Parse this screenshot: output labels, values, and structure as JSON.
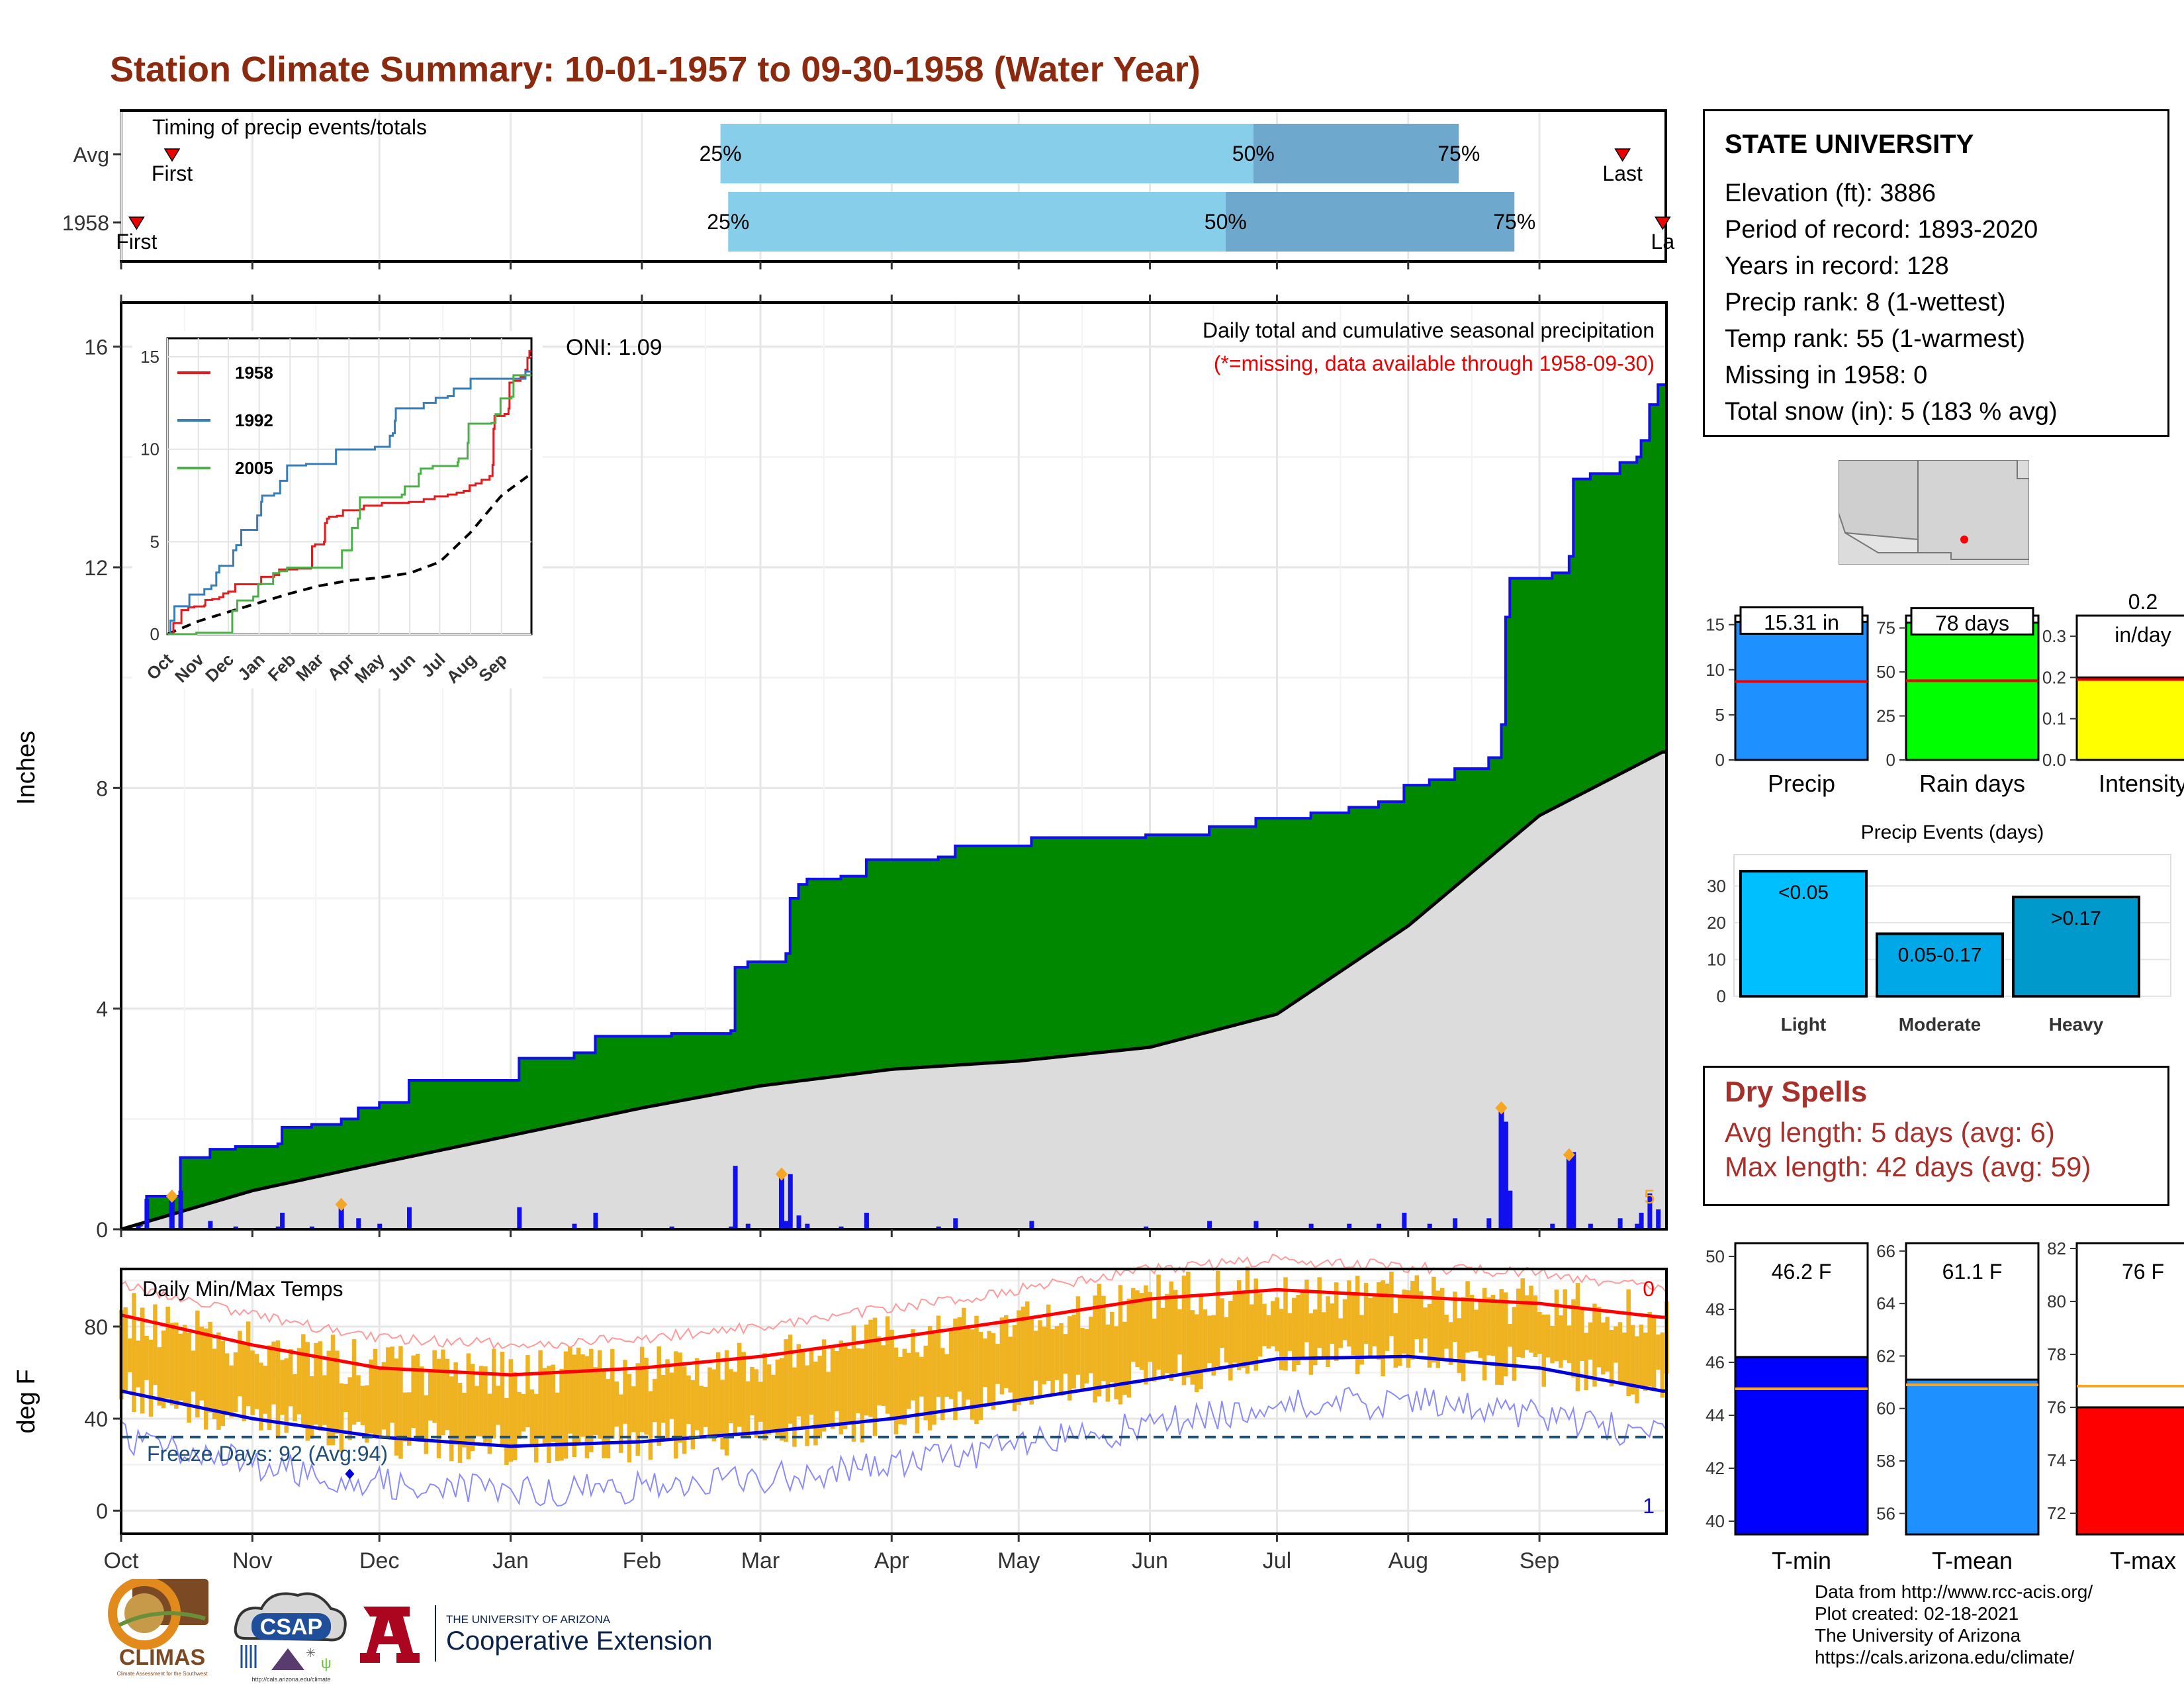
{
  "title": "Station Climate Summary: 10-01-1957 to 09-30-1958 (Water Year)",
  "timing": {
    "label": "Timing of precip events/totals",
    "rows": [
      {
        "name": "Avg",
        "first_label": "First",
        "last_label": "Last",
        "first": 0.033,
        "last": 0.972,
        "p25": 0.388,
        "p50": 0.733,
        "p75": 0.866,
        "p25_label": "25%",
        "p50_label": "50%",
        "p75_label": "75%"
      },
      {
        "name": "1958",
        "first_label": "First",
        "last_label": "La",
        "first": 0.01,
        "last": 0.998,
        "p25": 0.393,
        "p50": 0.715,
        "p75": 0.902,
        "p25_label": "25%",
        "p50_label": "50%",
        "p75_label": "75%"
      }
    ]
  },
  "main": {
    "caption": "Daily total and cumulative seasonal precipitation",
    "missing_note": "(*=missing, data available through 1958-09-30)",
    "oni": "ONI: 1.09",
    "ylabel": "Inches",
    "yticks": [
      "0",
      "4",
      "8",
      "12",
      "16"
    ],
    "snow_tag": "5"
  },
  "inset": {
    "yticks": [
      "0",
      "5",
      "10",
      "15"
    ],
    "months": [
      "Oct",
      "Nov",
      "Dec",
      "Jan",
      "Feb",
      "Mar",
      "Apr",
      "May",
      "Jun",
      "Jul",
      "Aug",
      "Sep"
    ],
    "legend": [
      {
        "name": "1958",
        "color": "#e41a1c"
      },
      {
        "name": "1992",
        "color": "#377eb8"
      },
      {
        "name": "2005",
        "color": "#4daf4a"
      }
    ]
  },
  "temps": {
    "label": "Daily Min/Max Temps",
    "ylabel": "deg F",
    "yticks": [
      "0",
      "40",
      "80"
    ],
    "freeze": "Freeze Days: 92 (Avg:94)",
    "record_high_count": "0",
    "record_low_count": "1"
  },
  "months": [
    "Oct",
    "Nov",
    "Dec",
    "Jan",
    "Feb",
    "Mar",
    "Apr",
    "May",
    "Jun",
    "Jul",
    "Aug",
    "Sep"
  ],
  "info": {
    "station": "STATE UNIVERSITY",
    "lines": [
      "Elevation (ft): 3886",
      "Period of record: 1893-2020",
      "Years in record: 128",
      "Precip rank: 8 (1-wettest)",
      "Temp rank: 55 (1-warmest)",
      "Missing in 1958: 0",
      "Total snow (in): 5 (183 % avg)"
    ]
  },
  "summary_bars": [
    {
      "name": "Precip",
      "value": 15.31,
      "avg": 8.7,
      "label": "15.31 in",
      "label2": "",
      "color": "#1e90ff",
      "max": 16,
      "ticks": [
        "0",
        "5",
        "10",
        "15"
      ]
    },
    {
      "name": "Rain days",
      "value": 78,
      "avg": 45,
      "label": "78 days",
      "label2": "",
      "color": "#00ff00",
      "max": 82,
      "ticks": [
        "0",
        "25",
        "50",
        "75"
      ]
    },
    {
      "name": "Intensity",
      "value": 0.2,
      "avg": 0.195,
      "label": "0.2",
      "label2": "in/day",
      "color": "#ffff00",
      "max": 0.35,
      "ticks": [
        "0.0",
        "0.1",
        "0.2",
        "0.3"
      ]
    }
  ],
  "events": {
    "title": "Precip Events (days)",
    "yticks": [
      "0",
      "10",
      "20",
      "30"
    ],
    "bars": [
      {
        "name": "Light",
        "value": 34,
        "label": "<0.05",
        "color": "#00bfff"
      },
      {
        "name": "Moderate",
        "value": 17,
        "label": "0.05-0.17",
        "color": "#00a8e8"
      },
      {
        "name": "Heavy",
        "value": 27,
        "label": ">0.17",
        "color": "#0099cc"
      }
    ]
  },
  "dry_spells": {
    "title": "Dry Spells",
    "avg": "Avg length: 5 days (avg: 6)",
    "max": "Max length: 42 days (avg: 59)"
  },
  "temp_bars": [
    {
      "name": "T-min",
      "value": 46.2,
      "avg": 45.0,
      "label": "46.2 F",
      "color": "#0000ff",
      "min": 39.5,
      "max": 50.5,
      "ticks": [
        "40",
        "42",
        "44",
        "46",
        "48",
        "50"
      ]
    },
    {
      "name": "T-mean",
      "value": 61.1,
      "avg": 60.9,
      "label": "61.1 F",
      "color": "#1e90ff",
      "min": 55.2,
      "max": 66.3,
      "ticks": [
        "56",
        "58",
        "60",
        "62",
        "64",
        "66"
      ]
    },
    {
      "name": "T-max",
      "value": 76,
      "avg": 76.8,
      "label": "76 F",
      "color": "#ff0000",
      "min": 71.2,
      "max": 82.2,
      "ticks": [
        "72",
        "74",
        "76",
        "78",
        "80",
        "82"
      ]
    }
  ],
  "credits": [
    "Data from http://www.rcc-acis.org/",
    "Plot created: 02-18-2021",
    "The University of Arizona",
    "https://cals.arizona.edu/climate/"
  ],
  "logos": {
    "climas": "CLIMAS",
    "csap": "CSAP",
    "csap_url": "http://cals.arizona.edu/climate",
    "ua_small": "THE UNIVERSITY OF ARIZONA",
    "ua_big": "Cooperative Extension"
  },
  "chart_data": [
    {
      "type": "area",
      "title": "Daily total and cumulative seasonal precipitation",
      "ylabel": "Inches",
      "ylim": [
        0,
        16.8
      ],
      "x_range": [
        "1957-10-01",
        "1958-09-30"
      ],
      "series": [
        {
          "name": "1958",
          "points": [
            [
              "1957-10-01",
              0
            ],
            [
              "1957-10-05",
              0.05
            ],
            [
              "1957-10-07",
              0.6
            ],
            [
              "1957-10-15",
              1.3
            ],
            [
              "1957-10-22",
              1.45
            ],
            [
              "1957-10-28",
              1.5
            ],
            [
              "1957-11-07",
              1.55
            ],
            [
              "1957-11-08",
              1.85
            ],
            [
              "1957-11-15",
              1.9
            ],
            [
              "1957-11-22",
              2.0
            ],
            [
              "1957-11-26",
              2.2
            ],
            [
              "1957-12-01",
              2.3
            ],
            [
              "1957-12-08",
              2.7
            ],
            [
              "1958-01-01",
              2.7
            ],
            [
              "1958-01-03",
              3.1
            ],
            [
              "1958-01-16",
              3.2
            ],
            [
              "1958-01-21",
              3.5
            ],
            [
              "1958-02-08",
              3.55
            ],
            [
              "1958-02-22",
              3.6
            ],
            [
              "1958-02-23",
              4.75
            ],
            [
              "1958-02-26",
              4.85
            ],
            [
              "1958-03-07",
              5.0
            ],
            [
              "1958-03-08",
              6.0
            ],
            [
              "1958-03-10",
              6.25
            ],
            [
              "1958-03-12",
              6.35
            ],
            [
              "1958-03-20",
              6.4
            ],
            [
              "1958-03-26",
              6.7
            ],
            [
              "1958-04-12",
              6.75
            ],
            [
              "1958-04-16",
              6.95
            ],
            [
              "1958-05-04",
              7.1
            ],
            [
              "1958-05-31",
              7.15
            ],
            [
              "1958-06-15",
              7.3
            ],
            [
              "1958-06-26",
              7.45
            ],
            [
              "1958-07-09",
              7.55
            ],
            [
              "1958-07-18",
              7.65
            ],
            [
              "1958-07-25",
              7.75
            ],
            [
              "1958-07-31",
              8.05
            ],
            [
              "1958-08-06",
              8.15
            ],
            [
              "1958-08-12",
              8.35
            ],
            [
              "1958-08-20",
              8.55
            ],
            [
              "1958-08-23",
              9.15
            ],
            [
              "1958-08-24",
              11.1
            ],
            [
              "1958-08-25",
              11.8
            ],
            [
              "1958-09-04",
              11.9
            ],
            [
              "1958-09-08",
              12.2
            ],
            [
              "1958-09-09",
              13.6
            ],
            [
              "1958-09-13",
              13.7
            ],
            [
              "1958-09-20",
              13.9
            ],
            [
              "1958-09-24",
              14.0
            ],
            [
              "1958-09-25",
              14.3
            ],
            [
              "1958-09-27",
              14.95
            ],
            [
              "1958-09-29",
              15.31
            ]
          ]
        },
        {
          "name": "Avg",
          "points": [
            [
              "1957-10-01",
              0
            ],
            [
              "1957-11-01",
              0.7
            ],
            [
              "1957-12-01",
              1.2
            ],
            [
              "1958-01-01",
              1.7
            ],
            [
              "1958-02-01",
              2.2
            ],
            [
              "1958-03-01",
              2.6
            ],
            [
              "1958-04-01",
              2.9
            ],
            [
              "1958-05-01",
              3.05
            ],
            [
              "1958-06-01",
              3.3
            ],
            [
              "1958-07-01",
              3.9
            ],
            [
              "1958-08-01",
              5.5
            ],
            [
              "1958-09-01",
              7.5
            ],
            [
              "1958-09-30",
              8.65
            ]
          ]
        }
      ],
      "daily_highlights": [
        [
          "1957-10-13",
          0.6
        ],
        [
          "1957-11-22",
          0.45
        ],
        [
          "1958-03-06",
          1.0
        ],
        [
          "1958-08-23",
          2.2
        ],
        [
          "1958-09-08",
          1.35
        ]
      ]
    },
    {
      "type": "line",
      "title": "Daily Min/Max Temps",
      "ylabel": "deg F",
      "ylim": [
        -10,
        105
      ],
      "x_range": [
        "1957-10-01",
        "1958-09-30"
      ],
      "series": [
        {
          "name": "Avg Max",
          "points": [
            [
              "1957-10-01",
              85
            ],
            [
              "1957-11-01",
              72
            ],
            [
              "1957-12-01",
              62
            ],
            [
              "1958-01-01",
              59
            ],
            [
              "1958-02-01",
              62
            ],
            [
              "1958-03-01",
              67
            ],
            [
              "1958-04-01",
              75
            ],
            [
              "1958-05-01",
              83
            ],
            [
              "1958-06-01",
              92
            ],
            [
              "1958-07-01",
              96
            ],
            [
              "1958-08-01",
              93
            ],
            [
              "1958-09-01",
              90
            ],
            [
              "1958-09-30",
              84
            ]
          ]
        },
        {
          "name": "Avg Min",
          "points": [
            [
              "1957-10-01",
              52
            ],
            [
              "1957-11-01",
              40
            ],
            [
              "1957-12-01",
              32
            ],
            [
              "1958-01-01",
              28
            ],
            [
              "1958-02-01",
              30
            ],
            [
              "1958-03-01",
              34
            ],
            [
              "1958-04-01",
              40
            ],
            [
              "1958-05-01",
              48
            ],
            [
              "1958-06-01",
              57
            ],
            [
              "1958-07-01",
              66
            ],
            [
              "1958-08-01",
              67
            ],
            [
              "1958-09-01",
              62
            ],
            [
              "1958-09-30",
              52
            ]
          ]
        }
      ],
      "freeze_line": 32
    }
  ]
}
